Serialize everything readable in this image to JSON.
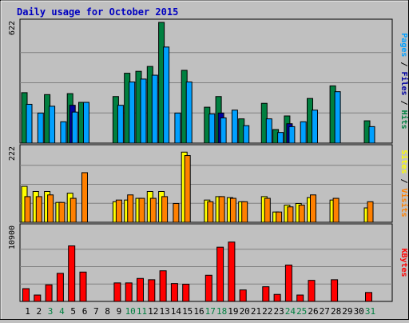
{
  "chart_data": {
    "type": "bar",
    "title": "Daily usage for October 2015",
    "days": [
      "1",
      "2",
      "3",
      "4",
      "5",
      "6",
      "7",
      "8",
      "9",
      "10",
      "11",
      "12",
      "13",
      "14",
      "15",
      "16",
      "17",
      "18",
      "19",
      "20",
      "21",
      "22",
      "23",
      "24",
      "25",
      "26",
      "27",
      "28",
      "29",
      "30",
      "31"
    ],
    "weekend_days": [
      "3",
      "4",
      "10",
      "11",
      "17",
      "18",
      "24",
      "25",
      "31"
    ],
    "panels": [
      {
        "id": "hits-files-pages",
        "max_label": "622",
        "ylim": [
          0,
          622
        ],
        "side_label": [
          {
            "text": "Pages",
            "color": "#00a0ff"
          },
          {
            "text": " / ",
            "color": "#000000"
          },
          {
            "text": "Files",
            "color": "#0000a0"
          },
          {
            "text": " / ",
            "color": "#000000"
          },
          {
            "text": "Hits",
            "color": "#008040"
          }
        ],
        "series": [
          {
            "name": "Hits",
            "color": "#008040",
            "values": [
              260,
              0,
              250,
              0,
              255,
              210,
              0,
              0,
              240,
              360,
              370,
              395,
              622,
              0,
              375,
              0,
              185,
              240,
              0,
              125,
              0,
              205,
              70,
              140,
              0,
              230,
              0,
              295,
              0,
              0,
              115
            ]
          },
          {
            "name": "Files",
            "color": "#0000a0",
            "values": [
              0,
              0,
              0,
              0,
              195,
              0,
              0,
              0,
              0,
              0,
              0,
              0,
              0,
              0,
              0,
              0,
              0,
              155,
              0,
              0,
              0,
              0,
              0,
              100,
              0,
              0,
              0,
              0,
              0,
              0,
              0
            ]
          },
          {
            "name": "Pages",
            "color": "#00a0ff",
            "values": [
              200,
              155,
              190,
              110,
              160,
              210,
              0,
              0,
              195,
              315,
              330,
              350,
              495,
              155,
              315,
              0,
              150,
              130,
              170,
              90,
              0,
              125,
              55,
              85,
              110,
              170,
              0,
              265,
              0,
              0,
              85
            ]
          }
        ]
      },
      {
        "id": "visits-sites",
        "max_label": "222",
        "ylim": [
          0,
          222
        ],
        "side_label": [
          {
            "text": "Sites",
            "color": "#ffff00"
          },
          {
            "text": " / ",
            "color": "#000000"
          },
          {
            "text": "Visits",
            "color": "#ff8000"
          }
        ],
        "series": [
          {
            "name": "Visits",
            "color": "#ffff00",
            "values": [
              105,
              90,
              90,
              58,
              85,
              0,
              0,
              0,
              60,
              65,
              70,
              90,
              90,
              0,
              205,
              0,
              65,
              75,
              72,
              60,
              0,
              75,
              30,
              50,
              55,
              72,
              0,
              65,
              0,
              0,
              42
            ]
          },
          {
            "name": "Sites",
            "color": "#ff8000",
            "values": [
              75,
              75,
              80,
              58,
              70,
              145,
              0,
              0,
              65,
              80,
              70,
              70,
              75,
              55,
              195,
              0,
              60,
              75,
              70,
              60,
              0,
              70,
              30,
              45,
              50,
              80,
              0,
              70,
              0,
              0,
              60
            ]
          }
        ]
      },
      {
        "id": "kbytes",
        "max_label": "10900",
        "ylim": [
          0,
          10900
        ],
        "side_label": [
          {
            "text": "KBytes",
            "color": "#ff0000"
          }
        ],
        "series": [
          {
            "name": "KBytes",
            "color": "#ff0000",
            "values": [
              2000,
              1000,
              2600,
              4400,
              8700,
              4600,
              0,
              0,
              2900,
              2900,
              3600,
              3400,
              4800,
              2800,
              2700,
              0,
              4100,
              8500,
              9300,
              1800,
              0,
              2300,
              1100,
              5700,
              1000,
              3300,
              0,
              3400,
              0,
              0,
              1400
            ]
          }
        ]
      }
    ]
  }
}
